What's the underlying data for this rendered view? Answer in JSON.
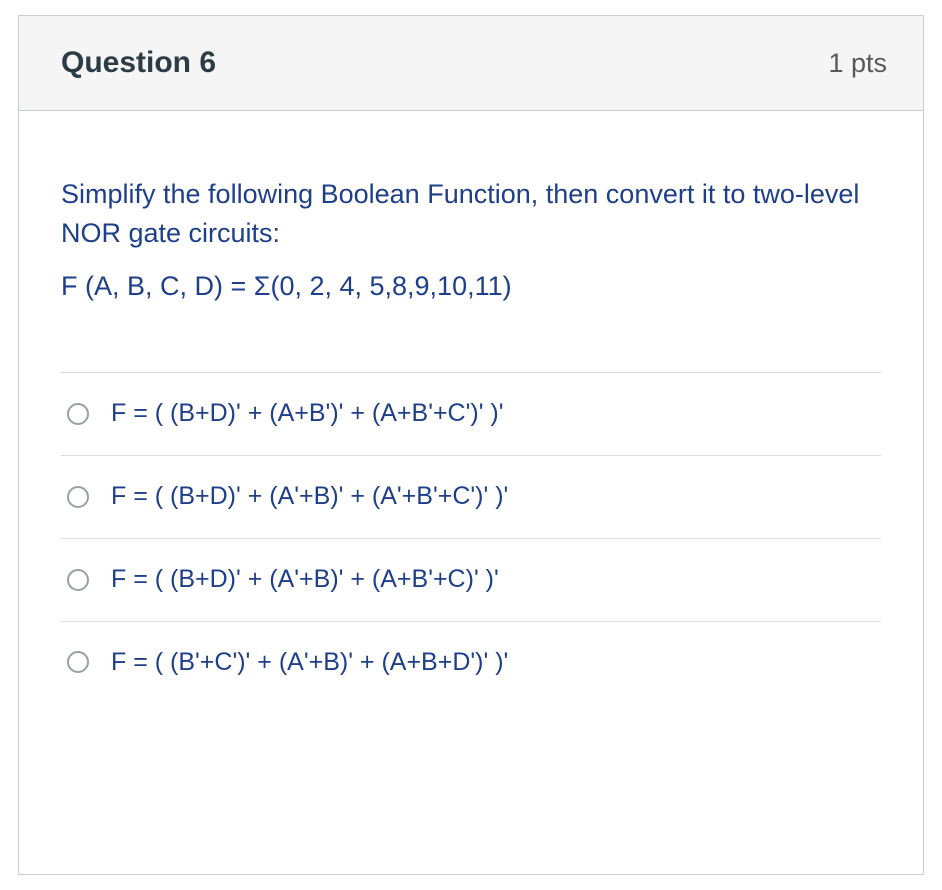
{
  "header": {
    "title": "Question 6",
    "points": "1 pts"
  },
  "prompt": {
    "line1": "Simplify the following Boolean Function, then convert it to two-level NOR gate circuits:",
    "function": "F (A, B, C, D) = Σ(0, 2, 4, 5,8,9,10,11)"
  },
  "options": [
    {
      "text": "F = ( (B+D)' + (A+B')' + (A+B'+C')' )'"
    },
    {
      "text": "F = ( (B+D)' + (A'+B)' + (A'+B'+C')' )'"
    },
    {
      "text": "F = ( (B+D)' + (A'+B)' + (A+B'+C)' )'"
    },
    {
      "text": "F = ( (B'+C')' + (A'+B)' + (A+B+D')' )'"
    }
  ],
  "colors": {
    "accent": "#1e3f8a",
    "border": "#c7cdd1",
    "header_bg": "#f5f5f5",
    "radio_border": "#9aa0a6",
    "points_text": "#595959",
    "title_text": "#2d3b45",
    "divider": "#dddddd"
  }
}
